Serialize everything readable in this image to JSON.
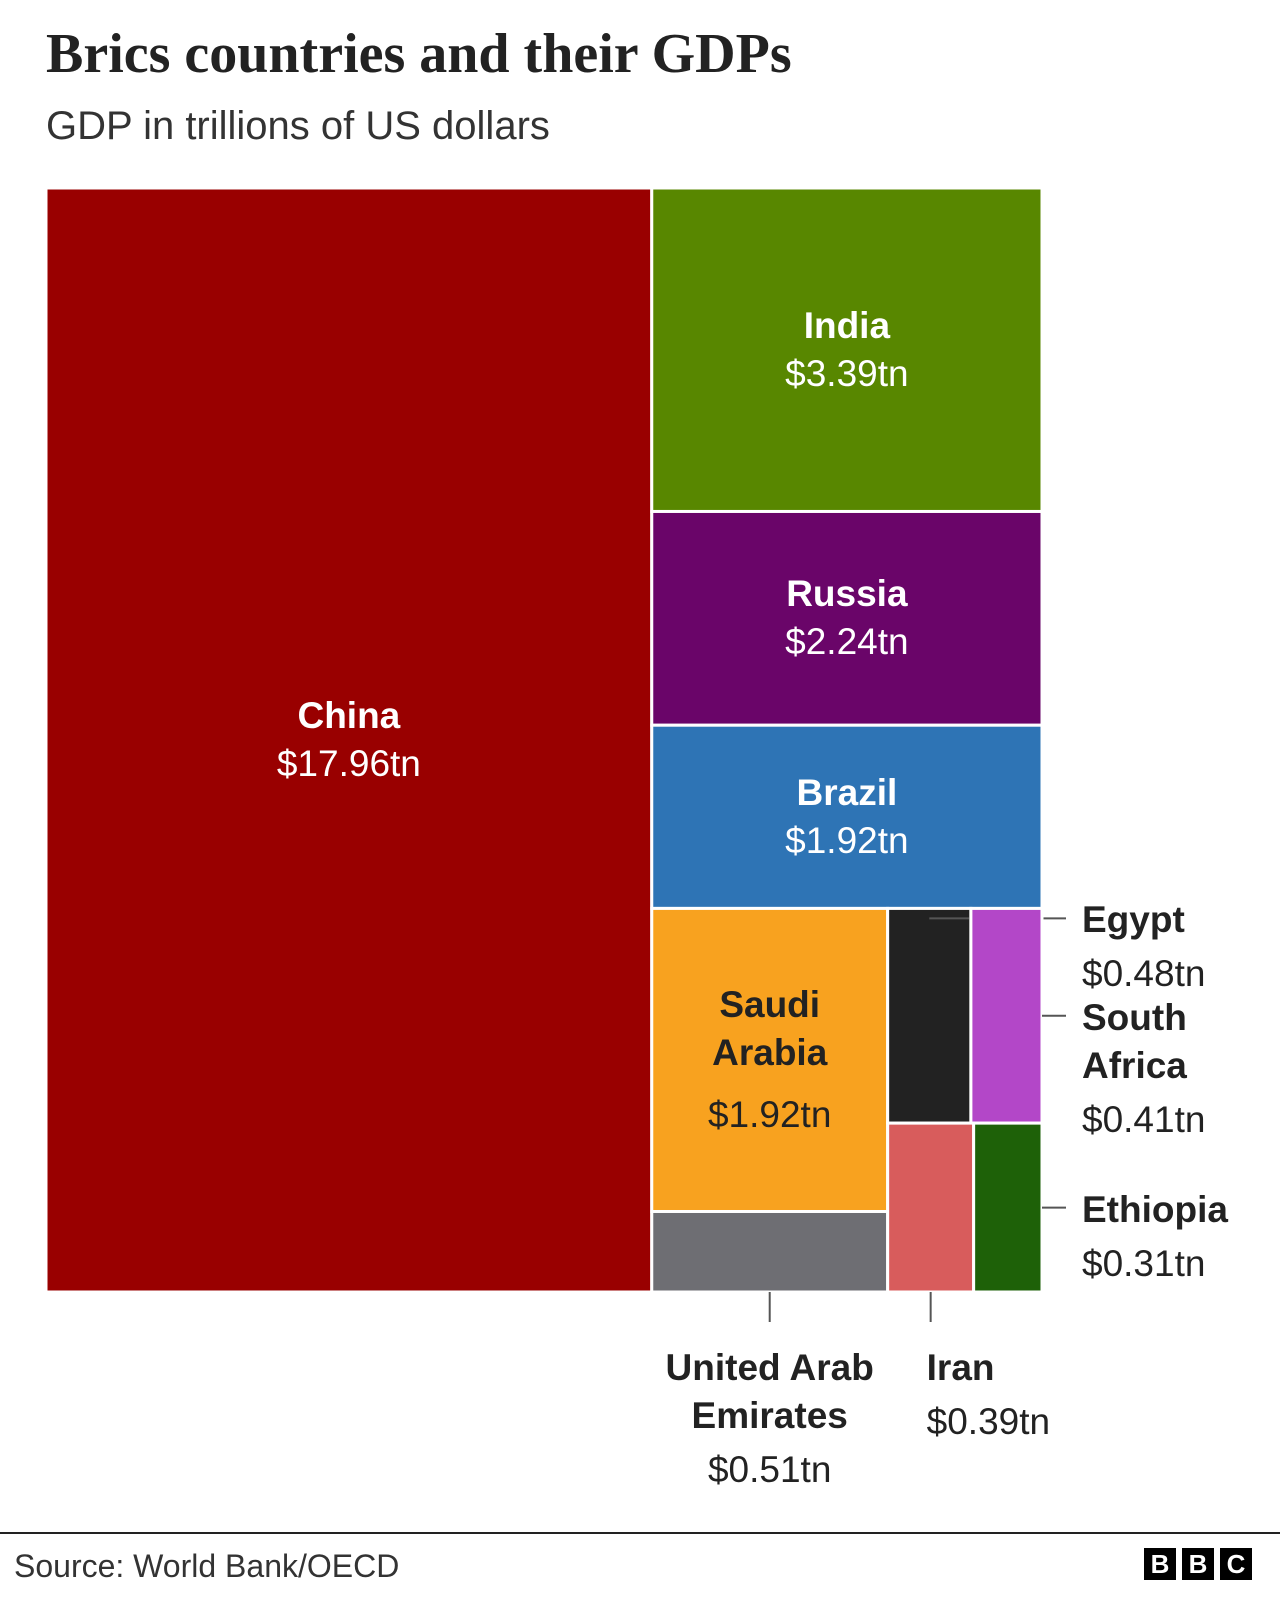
{
  "chart_data": {
    "type": "treemap",
    "title": "Brics countries and their GDPs",
    "subtitle": "GDP in trillions of US dollars",
    "series": [
      {
        "name": "China",
        "value": 17.96,
        "value_label": "$17.96tn",
        "color": "#990000"
      },
      {
        "name": "India",
        "value": 3.39,
        "value_label": "$3.39tn",
        "color": "#588700"
      },
      {
        "name": "Russia",
        "value": 2.24,
        "value_label": "$2.24tn",
        "color": "#6a0569"
      },
      {
        "name": "Brazil",
        "value": 1.92,
        "value_label": "$1.92tn",
        "color": "#2e74b5"
      },
      {
        "name": "Saudi Arabia",
        "value": 1.92,
        "value_label": "$1.92tn",
        "color": "#f8a21f"
      },
      {
        "name": "United Arab Emirates",
        "value": 0.51,
        "value_label": "$0.51tn",
        "color": "#6e6e73"
      },
      {
        "name": "Egypt",
        "value": 0.48,
        "value_label": "$0.48tn",
        "color": "#222222"
      },
      {
        "name": "South Africa",
        "value": 0.41,
        "value_label": "$0.41tn",
        "color": "#b347c8"
      },
      {
        "name": "Iran",
        "value": 0.39,
        "value_label": "$0.39tn",
        "color": "#d85c5c"
      },
      {
        "name": "Ethiopia",
        "value": 0.31,
        "value_label": "$0.31tn",
        "color": "#1e6108"
      }
    ],
    "source": "Source: World Bank/OECD",
    "logo": [
      "B",
      "B",
      "C"
    ]
  }
}
